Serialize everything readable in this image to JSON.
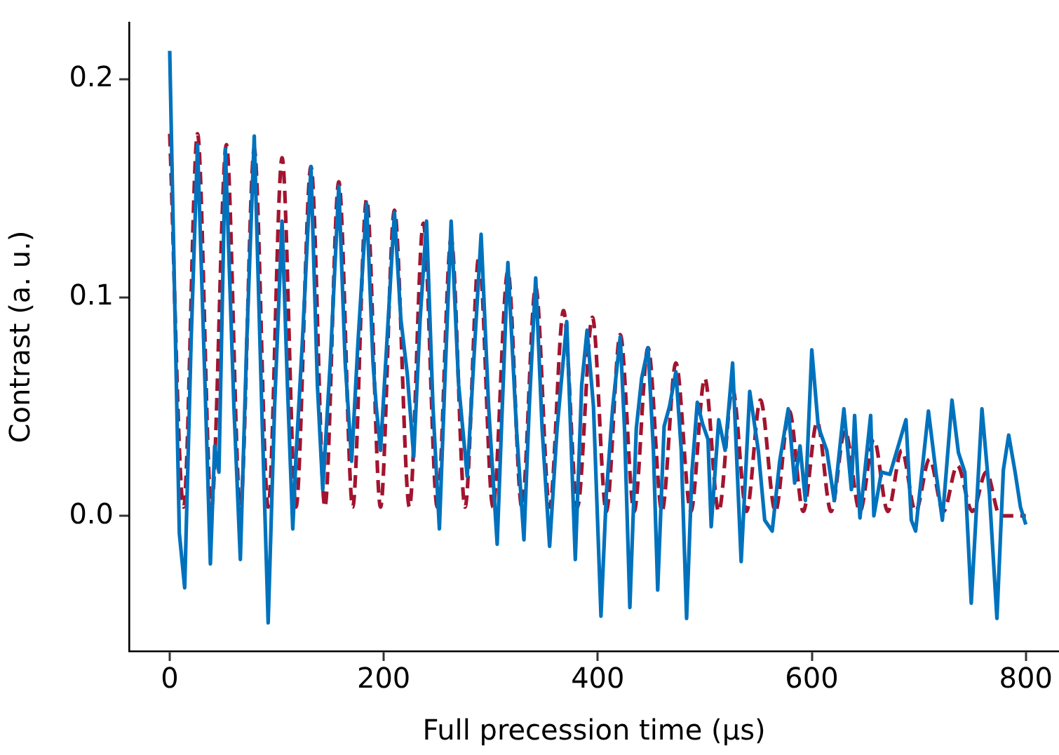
{
  "chart_data": {
    "type": "line",
    "xlabel": "Full precession time (µs)",
    "ylabel": "Contrast (a. u.)",
    "xlim": [
      -38,
      831
    ],
    "xticks": [
      0,
      200,
      400,
      600,
      800
    ],
    "ylim": [
      -0.062,
      0.226
    ],
    "yticks": [
      {
        "value": 0,
        "label": "0.0"
      },
      {
        "value": 0.1,
        "label": "0.1"
      },
      {
        "value": 0.2,
        "label": "0.2"
      }
    ],
    "grid": false,
    "legend": false,
    "marker": "none",
    "series": [
      {
        "color": "#0072bd",
        "line_style": "solid",
        "x": [
          0,
          9,
          14,
          20,
          26,
          33,
          38,
          42,
          46,
          52,
          60,
          66,
          72,
          79,
          86,
          92,
          98,
          105,
          110,
          115,
          118,
          124,
          132,
          138,
          143,
          150,
          158,
          164,
          170,
          176,
          184,
          190,
          193,
          197,
          203,
          210,
          216,
          222,
          228,
          234,
          240,
          246,
          252,
          257,
          263,
          270,
          278,
          284,
          291,
          298,
          306,
          310,
          316,
          324,
          331,
          336,
          342,
          348,
          355,
          362,
          371,
          379,
          385,
          390,
          396,
          403,
          408,
          414,
          421,
          425,
          430,
          436,
          441,
          447,
          452,
          456,
          462,
          467,
          473,
          478,
          483,
          488,
          493,
          498,
          503,
          506,
          513,
          519,
          526,
          534,
          542,
          550,
          556,
          563,
          570,
          578,
          584,
          589,
          594,
          600,
          606,
          614,
          621,
          630,
          637,
          640,
          645,
          655,
          658,
          665,
          673,
          688,
          693,
          697,
          709,
          716,
          722,
          731,
          737,
          743,
          749,
          759,
          766,
          773,
          779,
          784,
          790,
          795,
          800
        ],
        "values": [
          0.213,
          -0.008,
          -0.033,
          0.08,
          0.17,
          0.06,
          -0.022,
          0.032,
          0.02,
          0.168,
          0.05,
          -0.02,
          0.08,
          0.174,
          0.05,
          -0.049,
          0.05,
          0.135,
          0.06,
          -0.006,
          0.027,
          0.08,
          0.16,
          0.06,
          0.012,
          0.07,
          0.151,
          0.07,
          0.025,
          0.08,
          0.143,
          0.07,
          0.05,
          0.03,
          0.08,
          0.139,
          0.09,
          0.065,
          0.027,
          0.09,
          0.135,
          0.05,
          -0.006,
          0.06,
          0.135,
          0.06,
          0.018,
          0.07,
          0.129,
          0.05,
          -0.013,
          0.04,
          0.116,
          0.04,
          -0.011,
          0.05,
          0.109,
          0.04,
          -0.014,
          0.04,
          0.089,
          -0.02,
          0.06,
          0.085,
          0.05,
          -0.046,
          0.01,
          0.05,
          0.082,
          0.04,
          -0.042,
          0.04,
          0.063,
          0.077,
          0.03,
          -0.034,
          0.041,
          0.05,
          0.066,
          0.03,
          -0.047,
          0.02,
          0.052,
          0.042,
          0.035,
          -0.005,
          0.044,
          0.03,
          0.07,
          -0.021,
          0.057,
          0.03,
          -0.002,
          -0.007,
          0.025,
          0.049,
          0.015,
          0.032,
          0.007,
          0.076,
          0.041,
          0.03,
          0.007,
          0.049,
          0.012,
          0.046,
          -0.001,
          0.046,
          0.0,
          0.02,
          0.019,
          0.044,
          -0.002,
          -0.007,
          0.048,
          0.02,
          -0.002,
          0.053,
          0.029,
          0.02,
          -0.04,
          0.049,
          0.01,
          -0.047,
          0.021,
          0.037,
          0.02,
          0.004,
          -0.004
        ]
      },
      {
        "color": "#a2142f",
        "line_style": "dashed",
        "x": [
          0,
          13,
          26,
          39,
          53,
          66,
          79,
          92,
          105,
          118,
          132,
          145,
          158,
          171,
          184,
          197,
          210,
          224,
          237,
          250,
          263,
          276,
          289,
          302,
          316,
          329,
          342,
          355,
          368,
          381,
          395,
          408,
          421,
          434,
          447,
          460,
          473,
          487,
          500,
          513,
          526,
          539,
          552,
          566,
          579,
          592,
          605,
          618,
          631,
          645,
          658,
          671,
          684,
          697,
          710,
          723,
          736,
          750,
          763,
          776,
          800
        ],
        "values": [
          0.175,
          0.004,
          0.175,
          0.004,
          0.17,
          0.004,
          0.168,
          0.004,
          0.164,
          0.004,
          0.16,
          0.004,
          0.153,
          0.004,
          0.145,
          0.004,
          0.14,
          0.004,
          0.134,
          0.004,
          0.127,
          0.004,
          0.119,
          0.004,
          0.112,
          0.004,
          0.105,
          0.004,
          0.094,
          0.004,
          0.091,
          0.002,
          0.083,
          0.002,
          0.077,
          0.002,
          0.07,
          0.002,
          0.063,
          0.002,
          0.058,
          0.002,
          0.053,
          0.002,
          0.048,
          0.002,
          0.043,
          0.002,
          0.039,
          0.002,
          0.035,
          0.002,
          0.03,
          0.002,
          0.026,
          0.002,
          0.023,
          0.002,
          0.02,
          0.0,
          0.0
        ]
      }
    ]
  }
}
